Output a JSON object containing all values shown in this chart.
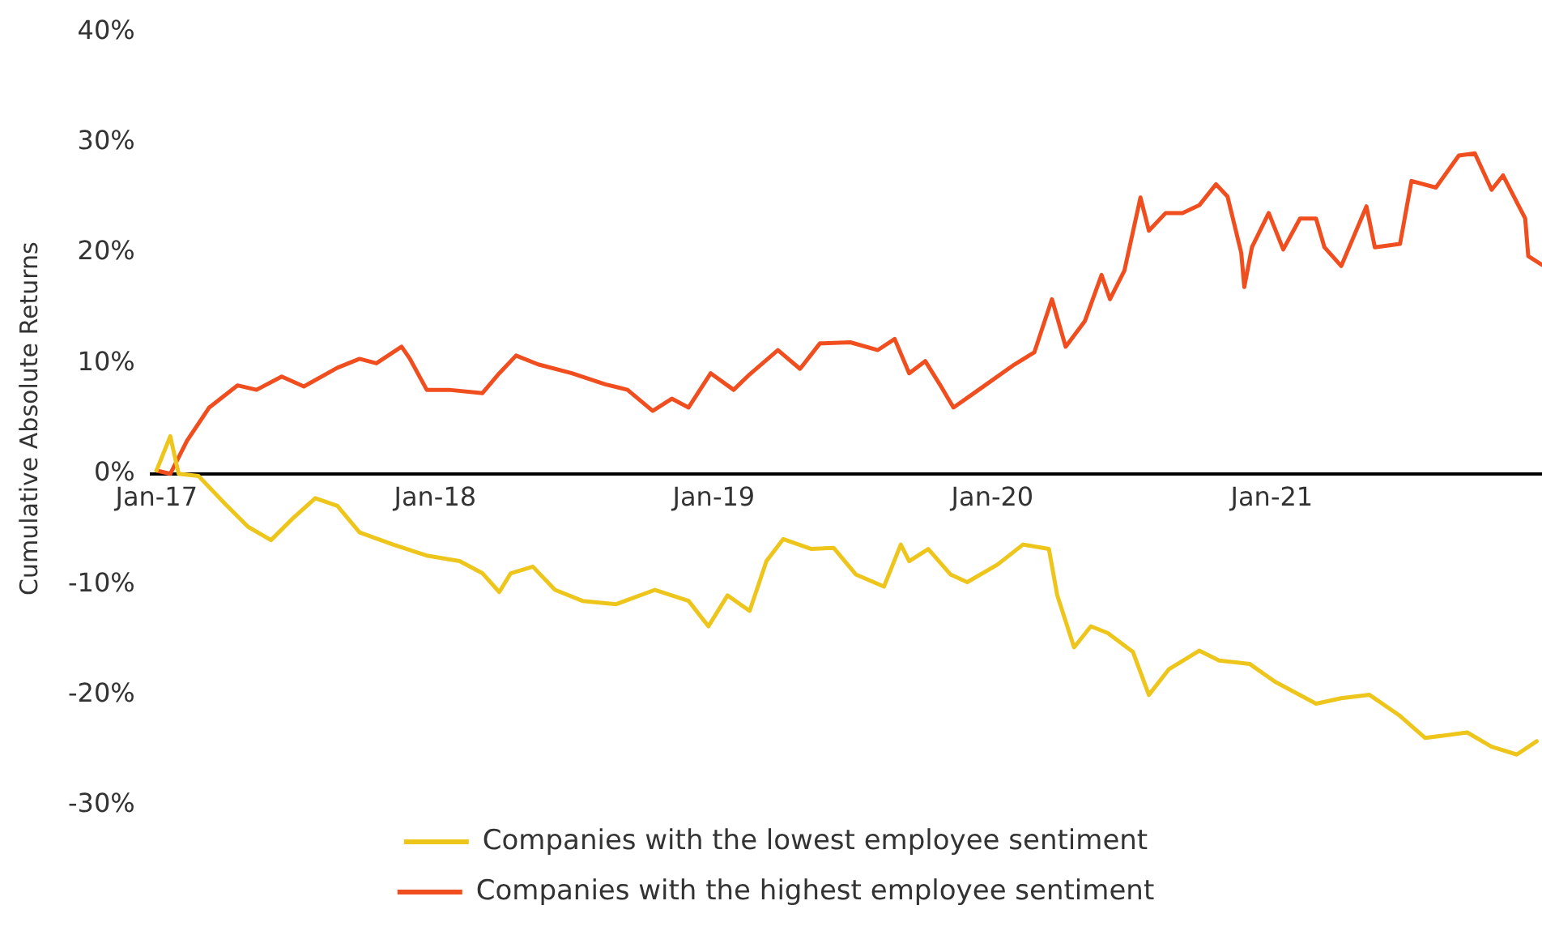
{
  "chart_data": {
    "type": "line",
    "ylabel": "Cumulative Absolute Returns",
    "legend": "bottom",
    "grid": false,
    "marker": "none",
    "line_style": "solid",
    "xlim": [
      "2016-12-25",
      "2021-12-21"
    ],
    "xticks": [
      {
        "value": "2017-01",
        "label": "Jan-17"
      },
      {
        "value": "2018-01",
        "label": "Jan-18"
      },
      {
        "value": "2019-01",
        "label": "Jan-19"
      },
      {
        "value": "2020-01",
        "label": "Jan-20"
      },
      {
        "value": "2021-01",
        "label": "Jan-21"
      }
    ],
    "ylim": [
      -30,
      40
    ],
    "yticks": [
      {
        "value": -30,
        "label": "-30%"
      },
      {
        "value": -20,
        "label": "-20%"
      },
      {
        "value": -10,
        "label": "-10%"
      },
      {
        "value": 0,
        "label": "0%"
      },
      {
        "value": 10,
        "label": "10%"
      },
      {
        "value": 20,
        "label": "20%"
      },
      {
        "value": 30,
        "label": "30%"
      },
      {
        "value": 40,
        "label": "40%"
      }
    ],
    "series": [
      {
        "name": "Companies with the lowest employee sentiment",
        "color": "#eec51a",
        "x": [
          "2017-01-01",
          "2017-01-19",
          "2017-01-30",
          "2017-02-25",
          "2017-04-02",
          "2017-05-01",
          "2017-05-31",
          "2017-06-29",
          "2017-07-28",
          "2017-08-26",
          "2017-09-24",
          "2017-11-07",
          "2017-12-21",
          "2018-02-02",
          "2018-03-04",
          "2018-03-26",
          "2018-04-10",
          "2018-05-09",
          "2018-06-07",
          "2018-07-13",
          "2018-08-26",
          "2018-10-16",
          "2018-11-29",
          "2018-12-25",
          "2019-01-19",
          "2019-02-17",
          "2019-03-11",
          "2019-04-02",
          "2019-05-09",
          "2019-06-07",
          "2019-07-06",
          "2019-08-12",
          "2019-09-03",
          "2019-09-14",
          "2019-10-09",
          "2019-11-07",
          "2019-11-29",
          "2020-01-08",
          "2020-02-10",
          "2020-03-15",
          "2020-03-26",
          "2020-04-17",
          "2020-05-09",
          "2020-05-31",
          "2020-07-03",
          "2020-07-24",
          "2020-08-19",
          "2020-09-28",
          "2020-10-24",
          "2020-12-03",
          "2021-01-05",
          "2021-02-28",
          "2021-04-02",
          "2021-05-09",
          "2021-06-18",
          "2021-07-21",
          "2021-09-14",
          "2021-10-16",
          "2021-11-18",
          "2021-12-14"
        ],
        "values": [
          0.3,
          3.4,
          0,
          -0.2,
          -2.8,
          -4.8,
          -6,
          -4,
          -2.2,
          -2.9,
          -5.3,
          -6.4,
          -7.4,
          -7.9,
          -9,
          -10.7,
          -9,
          -8.4,
          -10.5,
          -11.5,
          -11.8,
          -10.5,
          -11.5,
          -13.8,
          -11,
          -12.4,
          -7.9,
          -5.9,
          -6.8,
          -6.7,
          -9.1,
          -10.2,
          -6.4,
          -7.9,
          -6.8,
          -9.1,
          -9.8,
          -8.2,
          -6.4,
          -6.8,
          -11,
          -15.7,
          -13.8,
          -14.4,
          -16.1,
          -20,
          -17.7,
          -16,
          -16.9,
          -17.2,
          -18.8,
          -20.8,
          -20.3,
          -20,
          -21.9,
          -23.9,
          -23.4,
          -24.7,
          -25.4,
          -24.2
        ]
      },
      {
        "name": "Companies with the highest employee sentiment",
        "color": "#f04e1e",
        "x": [
          "2017-01-01",
          "2017-01-19",
          "2017-02-10",
          "2017-03-11",
          "2017-04-17",
          "2017-05-12",
          "2017-06-14",
          "2017-07-13",
          "2017-08-26",
          "2017-09-24",
          "2017-10-16",
          "2017-11-18",
          "2017-11-29",
          "2017-12-21",
          "2018-01-19",
          "2018-03-04",
          "2018-03-26",
          "2018-04-17",
          "2018-05-16",
          "2018-06-29",
          "2018-08-12",
          "2018-09-10",
          "2018-10-13",
          "2018-11-07",
          "2018-11-29",
          "2018-12-28",
          "2019-01-27",
          "2019-02-17",
          "2019-03-26",
          "2019-04-24",
          "2019-05-20",
          "2019-06-29",
          "2019-08-04",
          "2019-08-26",
          "2019-09-14",
          "2019-10-05",
          "2019-10-24",
          "2019-11-11",
          "2019-12-14",
          "2020-01-30",
          "2020-02-25",
          "2020-03-19",
          "2020-04-06",
          "2020-05-01",
          "2020-05-23",
          "2020-06-03",
          "2020-06-22",
          "2020-07-13",
          "2020-07-24",
          "2020-08-15",
          "2020-09-06",
          "2020-09-28",
          "2020-10-20",
          "2020-11-04",
          "2020-11-22",
          "2020-11-26",
          "2020-12-06",
          "2020-12-28",
          "2021-01-16",
          "2021-02-07",
          "2021-02-28",
          "2021-03-11",
          "2021-04-02",
          "2021-05-05",
          "2021-05-16",
          "2021-06-18",
          "2021-07-03",
          "2021-08-04",
          "2021-09-03",
          "2021-09-24",
          "2021-10-16",
          "2021-10-31",
          "2021-11-29",
          "2021-12-03",
          "2021-12-21"
        ],
        "values": [
          0.3,
          0,
          3,
          6,
          8,
          7.6,
          8.8,
          7.9,
          9.6,
          10.4,
          10,
          11.5,
          10.4,
          7.6,
          7.6,
          7.3,
          9.1,
          10.7,
          9.9,
          9.1,
          8.1,
          7.6,
          5.7,
          6.8,
          6,
          9.1,
          7.6,
          9,
          11.2,
          9.5,
          11.8,
          11.9,
          11.2,
          12.2,
          9.1,
          10.2,
          8.1,
          6,
          7.6,
          9.9,
          11,
          15.8,
          11.5,
          13.8,
          18,
          15.8,
          18.4,
          25,
          22,
          23.6,
          23.6,
          24.3,
          26.2,
          25.1,
          20,
          16.9,
          20.5,
          23.6,
          20.3,
          23.1,
          23.1,
          20.5,
          18.8,
          24.2,
          20.5,
          20.8,
          26.5,
          25.9,
          28.8,
          29,
          25.7,
          27,
          23.1,
          19.7,
          18.9
        ]
      }
    ]
  }
}
